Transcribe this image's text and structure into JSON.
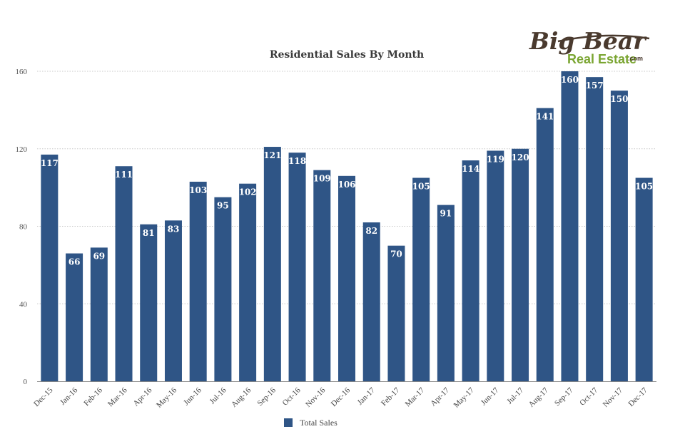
{
  "logo": {
    "line1": "Big Bear",
    "line2": "Real Estate",
    "suffix": ".com"
  },
  "chart_data": {
    "type": "bar",
    "title": "Residential Sales By Month",
    "xlabel": "",
    "ylabel": "",
    "ylim": [
      0,
      160
    ],
    "yticks": [
      0,
      40,
      80,
      120,
      160
    ],
    "grid": true,
    "legend_position": "bottom",
    "colors": {
      "bar": "#2f5586"
    },
    "categories": [
      "Dec-15",
      "Jan-16",
      "Feb-16",
      "Mar-16",
      "Apr-16",
      "May-16",
      "Jun-16",
      "Jul-16",
      "Aug-16",
      "Sep-16",
      "Oct-16",
      "Nov-16",
      "Dec-16",
      "Jan-17",
      "Feb-17",
      "Mar-17",
      "Apr-17",
      "May-17",
      "Jun-17",
      "Jul-17",
      "Aug-17",
      "Sep-17",
      "Oct-17",
      "Nov-17",
      "Dec-17"
    ],
    "series": [
      {
        "name": "Total Sales",
        "values": [
          117,
          66,
          69,
          111,
          81,
          83,
          103,
          95,
          102,
          121,
          118,
          109,
          106,
          82,
          70,
          105,
          91,
          114,
          119,
          120,
          141,
          160,
          157,
          150,
          105
        ]
      }
    ]
  }
}
